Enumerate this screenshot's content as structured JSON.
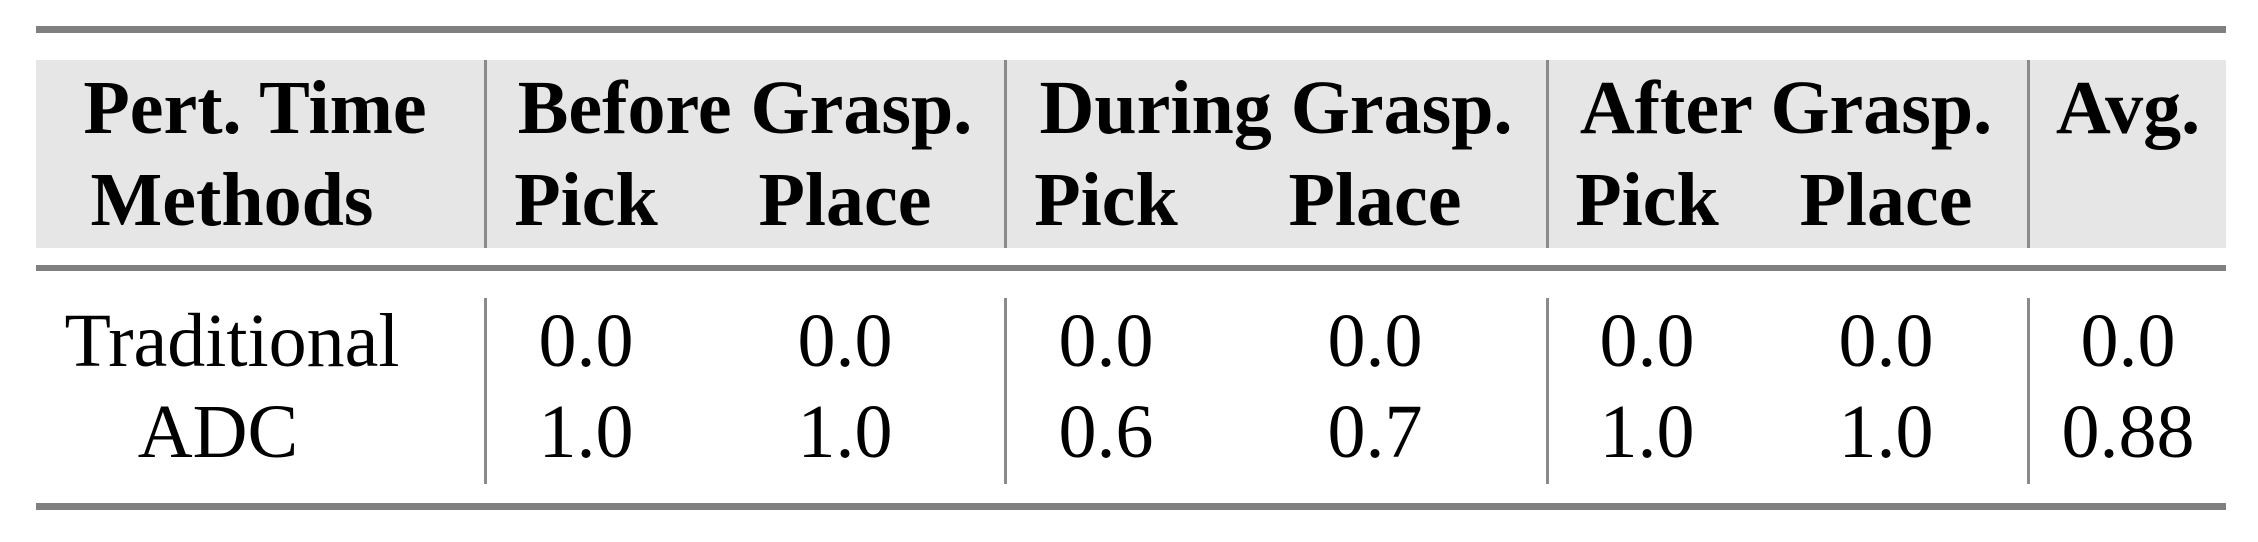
{
  "header": {
    "row1": {
      "pert_time": "Pert. Time",
      "groups": [
        "Before Grasp.",
        "During Grasp.",
        "After Grasp.",
        "Avg."
      ]
    },
    "row2": {
      "methods": "Methods",
      "subcols": [
        "Pick",
        "Place",
        "Pick",
        "Place",
        "Pick",
        "Place"
      ]
    }
  },
  "rows": [
    {
      "method": "Traditional",
      "values": [
        "0.0",
        "0.0",
        "0.0",
        "0.0",
        "0.0",
        "0.0",
        "0.0"
      ]
    },
    {
      "method": "ADC",
      "values": [
        "1.0",
        "1.0",
        "0.6",
        "0.7",
        "1.0",
        "1.0",
        "0.88"
      ]
    }
  ],
  "colors": {
    "header_bg": "#e6e6e6",
    "rule": "#808080"
  }
}
